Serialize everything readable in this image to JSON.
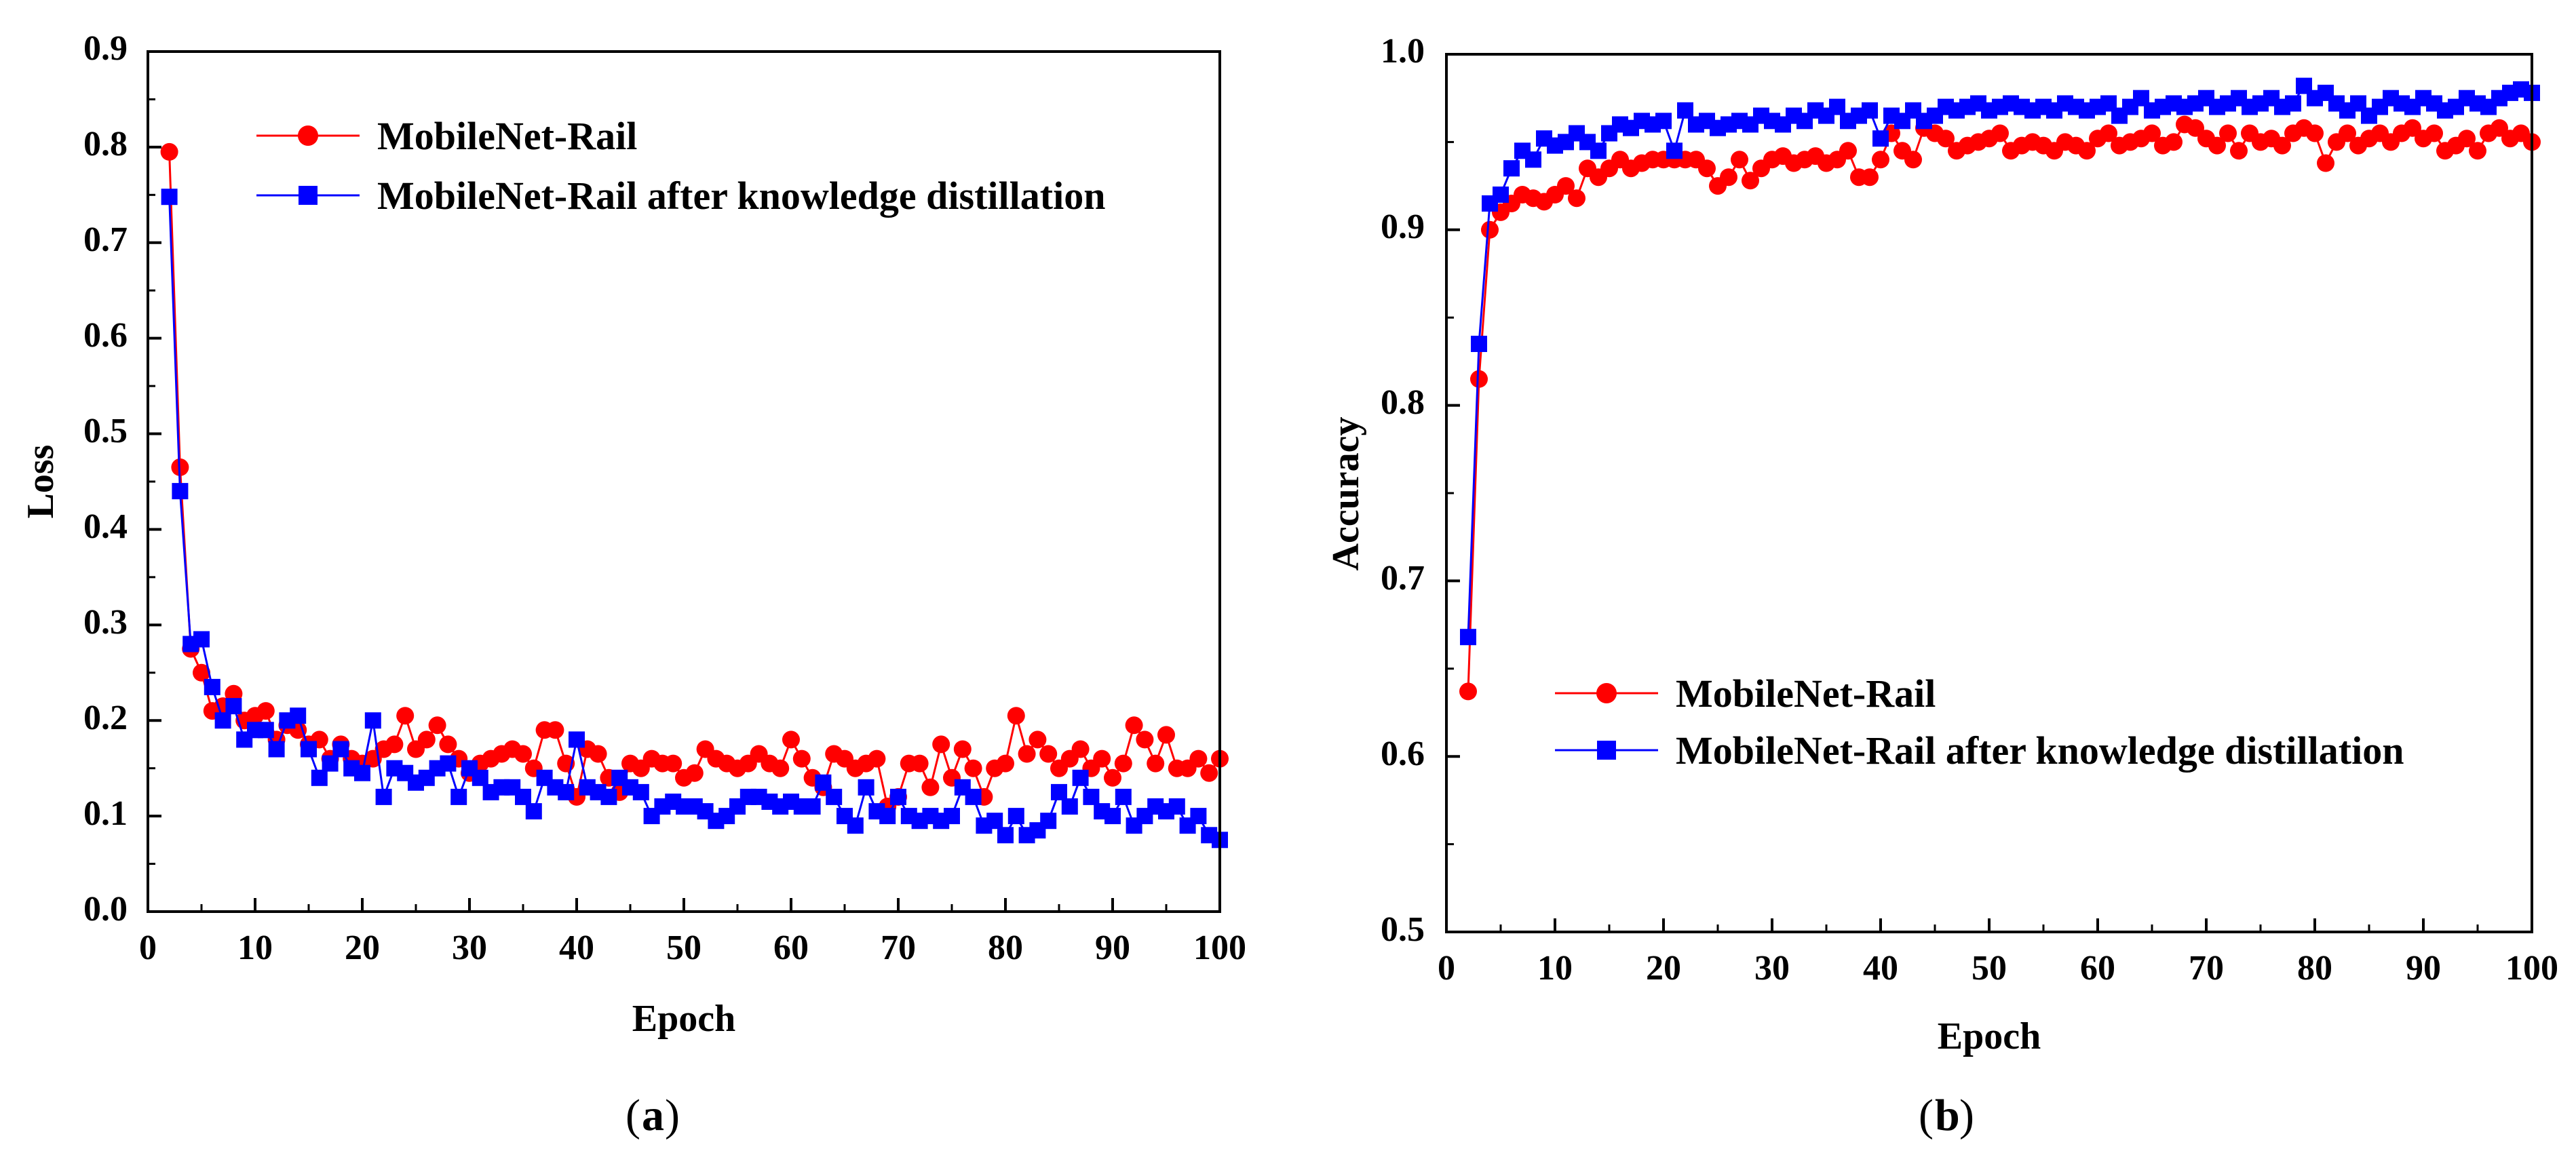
{
  "colors": {
    "series1": "#ff0000",
    "series2": "#0000ff",
    "axis": "#000000"
  },
  "chart_data": [
    {
      "type": "line",
      "caption_letter": "a",
      "xlabel": "Epoch",
      "ylabel": "Loss",
      "xlim": [
        0,
        100
      ],
      "ylim": [
        0,
        0.9
      ],
      "xticks": [
        "0",
        "10",
        "20",
        "30",
        "40",
        "50",
        "60",
        "70",
        "80",
        "90",
        "100"
      ],
      "yticks": [
        "0.0",
        "0.1",
        "0.2",
        "0.3",
        "0.4",
        "0.5",
        "0.6",
        "0.7",
        "0.8",
        "0.9"
      ],
      "legend_position": "top-right",
      "x_start": 2,
      "series": [
        {
          "name": "MobileNet-Rail",
          "marker": "circle",
          "values": [
            0.795,
            0.465,
            0.275,
            0.25,
            0.21,
            0.215,
            0.228,
            0.2,
            0.205,
            0.21,
            0.18,
            0.195,
            0.19,
            0.175,
            0.18,
            0.16,
            0.175,
            0.16,
            0.155,
            0.16,
            0.17,
            0.175,
            0.205,
            0.17,
            0.18,
            0.195,
            0.175,
            0.16,
            0.145,
            0.155,
            0.16,
            0.165,
            0.17,
            0.165,
            0.15,
            0.19,
            0.19,
            0.155,
            0.12,
            0.17,
            0.165,
            0.14,
            0.125,
            0.155,
            0.15,
            0.16,
            0.155,
            0.155,
            0.14,
            0.145,
            0.17,
            0.16,
            0.155,
            0.15,
            0.155,
            0.165,
            0.155,
            0.15,
            0.18,
            0.16,
            0.14,
            0.13,
            0.165,
            0.16,
            0.15,
            0.155,
            0.16,
            0.11,
            0.12,
            0.155,
            0.155,
            0.13,
            0.175,
            0.14,
            0.17,
            0.15,
            0.12,
            0.15,
            0.155,
            0.205,
            0.165,
            0.18,
            0.165,
            0.15,
            0.16,
            0.17,
            0.15,
            0.16,
            0.14,
            0.155,
            0.195,
            0.18,
            0.155,
            0.185,
            0.15,
            0.15,
            0.16,
            0.145,
            0.16
          ]
        },
        {
          "name": "MobileNet-Rail after knowledge distillation",
          "marker": "square",
          "values": [
            0.748,
            0.44,
            0.28,
            0.285,
            0.235,
            0.2,
            0.215,
            0.18,
            0.19,
            0.19,
            0.17,
            0.2,
            0.205,
            0.17,
            0.14,
            0.155,
            0.17,
            0.15,
            0.145,
            0.2,
            0.12,
            0.15,
            0.145,
            0.135,
            0.14,
            0.15,
            0.155,
            0.12,
            0.15,
            0.14,
            0.125,
            0.13,
            0.13,
            0.12,
            0.105,
            0.14,
            0.13,
            0.125,
            0.18,
            0.13,
            0.125,
            0.12,
            0.14,
            0.13,
            0.125,
            0.1,
            0.11,
            0.115,
            0.11,
            0.11,
            0.105,
            0.095,
            0.1,
            0.11,
            0.12,
            0.12,
            0.115,
            0.11,
            0.115,
            0.11,
            0.11,
            0.135,
            0.12,
            0.1,
            0.09,
            0.13,
            0.105,
            0.1,
            0.12,
            0.1,
            0.095,
            0.1,
            0.095,
            0.1,
            0.13,
            0.12,
            0.09,
            0.095,
            0.08,
            0.1,
            0.08,
            0.085,
            0.095,
            0.125,
            0.11,
            0.14,
            0.12,
            0.105,
            0.1,
            0.12,
            0.09,
            0.1,
            0.11,
            0.105,
            0.11,
            0.09,
            0.1,
            0.08,
            0.075
          ]
        }
      ]
    },
    {
      "type": "line",
      "caption_letter": "b",
      "xlabel": "Epoch",
      "ylabel": "Accuracy",
      "xlim": [
        0,
        100
      ],
      "ylim": [
        0.5,
        1.0
      ],
      "xticks": [
        "0",
        "10",
        "20",
        "30",
        "40",
        "50",
        "60",
        "70",
        "80",
        "90",
        "100"
      ],
      "yticks": [
        "0.5",
        "0.6",
        "0.7",
        "0.8",
        "0.9",
        "1.0"
      ],
      "legend_position": "bottom-right",
      "x_start": 2,
      "series": [
        {
          "name": "MobileNet-Rail",
          "marker": "circle",
          "values": [
            0.637,
            0.815,
            0.9,
            0.91,
            0.915,
            0.92,
            0.918,
            0.916,
            0.92,
            0.925,
            0.918,
            0.935,
            0.93,
            0.935,
            0.94,
            0.935,
            0.938,
            0.94,
            0.94,
            0.94,
            0.94,
            0.94,
            0.935,
            0.925,
            0.93,
            0.94,
            0.928,
            0.935,
            0.94,
            0.942,
            0.938,
            0.94,
            0.942,
            0.938,
            0.94,
            0.945,
            0.93,
            0.93,
            0.94,
            0.955,
            0.945,
            0.94,
            0.958,
            0.955,
            0.952,
            0.945,
            0.948,
            0.95,
            0.952,
            0.955,
            0.945,
            0.948,
            0.95,
            0.948,
            0.945,
            0.95,
            0.948,
            0.945,
            0.952,
            0.955,
            0.948,
            0.95,
            0.952,
            0.955,
            0.948,
            0.95,
            0.96,
            0.958,
            0.952,
            0.948,
            0.955,
            0.945,
            0.955,
            0.95,
            0.952,
            0.948,
            0.955,
            0.958,
            0.955,
            0.938,
            0.95,
            0.955,
            0.948,
            0.952,
            0.955,
            0.95,
            0.955,
            0.958,
            0.952,
            0.955,
            0.945,
            0.948,
            0.952,
            0.945,
            0.955,
            0.958,
            0.952,
            0.955,
            0.95
          ]
        },
        {
          "name": "MobileNet-Rail after knowledge distillation",
          "marker": "square",
          "values": [
            0.668,
            0.835,
            0.915,
            0.92,
            0.935,
            0.945,
            0.94,
            0.952,
            0.948,
            0.95,
            0.955,
            0.95,
            0.945,
            0.955,
            0.96,
            0.958,
            0.962,
            0.96,
            0.962,
            0.945,
            0.968,
            0.96,
            0.962,
            0.958,
            0.96,
            0.962,
            0.96,
            0.965,
            0.962,
            0.96,
            0.965,
            0.962,
            0.968,
            0.965,
            0.97,
            0.962,
            0.965,
            0.968,
            0.952,
            0.965,
            0.962,
            0.968,
            0.962,
            0.965,
            0.97,
            0.968,
            0.97,
            0.972,
            0.968,
            0.97,
            0.972,
            0.97,
            0.968,
            0.97,
            0.968,
            0.972,
            0.97,
            0.968,
            0.97,
            0.972,
            0.965,
            0.97,
            0.975,
            0.968,
            0.97,
            0.972,
            0.97,
            0.972,
            0.975,
            0.97,
            0.972,
            0.975,
            0.97,
            0.972,
            0.975,
            0.97,
            0.972,
            0.982,
            0.975,
            0.978,
            0.972,
            0.968,
            0.972,
            0.965,
            0.97,
            0.975,
            0.972,
            0.97,
            0.975,
            0.972,
            0.968,
            0.97,
            0.975,
            0.972,
            0.97,
            0.975,
            0.978,
            0.98,
            0.978
          ]
        }
      ]
    }
  ]
}
